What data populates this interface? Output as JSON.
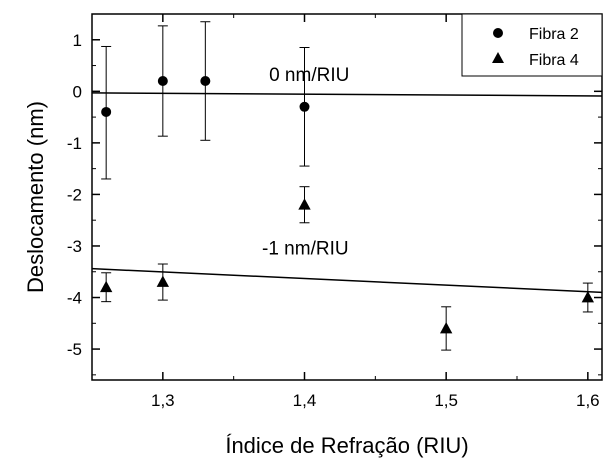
{
  "chart_data": {
    "type": "scatter",
    "xlabel": "Índice de Refração (RIU)",
    "ylabel": "Deslocamento (nm)",
    "xlim": [
      1.25,
      1.61
    ],
    "ylim": [
      -5.6,
      1.5
    ],
    "xticks": [
      1.3,
      1.4,
      1.5,
      1.6
    ],
    "xtick_labels": [
      "1,3",
      "1,4",
      "1,5",
      "1,6"
    ],
    "yticks": [
      -5,
      -4,
      -3,
      -2,
      -1,
      0,
      1
    ],
    "ytick_labels": [
      "-5",
      "-4",
      "-3",
      "-2",
      "-1",
      "0",
      "1"
    ],
    "legend_position": "top-right",
    "series": [
      {
        "name": "Fibra 2",
        "marker": "circle",
        "points": [
          {
            "x": 1.26,
            "y": -0.4,
            "err_low": 1.3,
            "err_high": 1.27
          },
          {
            "x": 1.3,
            "y": 0.2,
            "err_low": 1.07,
            "err_high": 1.07
          },
          {
            "x": 1.33,
            "y": 0.2,
            "err_low": 1.15,
            "err_high": 1.15
          },
          {
            "x": 1.4,
            "y": -0.3,
            "err_low": 1.15,
            "err_high": 1.15
          }
        ]
      },
      {
        "name": "Fibra 4",
        "marker": "triangle",
        "points": [
          {
            "x": 1.26,
            "y": -3.8,
            "err_low": 0.28,
            "err_high": 0.28
          },
          {
            "x": 1.3,
            "y": -3.7,
            "err_low": 0.35,
            "err_high": 0.35
          },
          {
            "x": 1.4,
            "y": -2.2,
            "err_low": 0.35,
            "err_high": 0.35
          },
          {
            "x": 1.5,
            "y": -4.6,
            "err_low": 0.42,
            "err_high": 0.42
          },
          {
            "x": 1.6,
            "y": -4.0,
            "err_low": 0.28,
            "err_high": 0.28
          }
        ]
      }
    ],
    "fit_lines": [
      {
        "label": "0 nm/RIU",
        "x": [
          1.25,
          1.61
        ],
        "y": [
          -0.03,
          -0.09
        ]
      },
      {
        "label": "-1 nm/RIU",
        "x": [
          1.25,
          1.61
        ],
        "y": [
          -3.44,
          -3.9
        ]
      }
    ]
  }
}
